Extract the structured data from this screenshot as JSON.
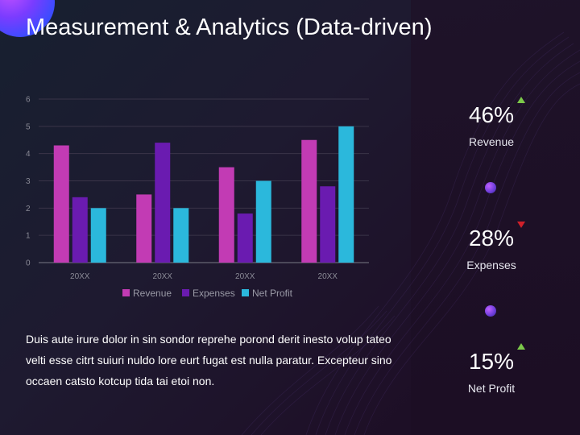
{
  "slide": {
    "title": "Measurement & Analytics (Data-driven)",
    "body": "Duis aute irure dolor in sin sondor reprehe porond derit inesto volup tateo velti esse citrt suiuri nuldo lore eurt fugat est nulla paratur. Excepteur sino occaen catsto kotcup tida tai etoi non."
  },
  "kpis": [
    {
      "value": "46%",
      "label": "Revenue",
      "trend": "up"
    },
    {
      "value": "28%",
      "label": "Expenses",
      "trend": "down"
    },
    {
      "value": "15%",
      "label": "Net Profit",
      "trend": "up"
    }
  ],
  "colors": {
    "revenue": "#c23bb4",
    "expenses": "#6a1bb0",
    "net_profit": "#2bb8dc",
    "trend_up": "#7cc94a",
    "trend_down": "#d0202a"
  },
  "chart_data": {
    "type": "bar",
    "categories": [
      "20XX",
      "20XX",
      "20XX",
      "20XX"
    ],
    "series": [
      {
        "name": "Revenue",
        "values": [
          4.3,
          2.5,
          3.5,
          4.5
        ]
      },
      {
        "name": "Expenses",
        "values": [
          2.4,
          4.4,
          1.8,
          2.8
        ]
      },
      {
        "name": "Net Profit",
        "values": [
          2.0,
          2.0,
          3.0,
          5.0
        ]
      }
    ],
    "ylim": [
      0,
      6
    ],
    "yticks": [
      "0",
      "1",
      "2",
      "3",
      "4",
      "5",
      "6"
    ],
    "grid": true,
    "legend": "bottom"
  }
}
